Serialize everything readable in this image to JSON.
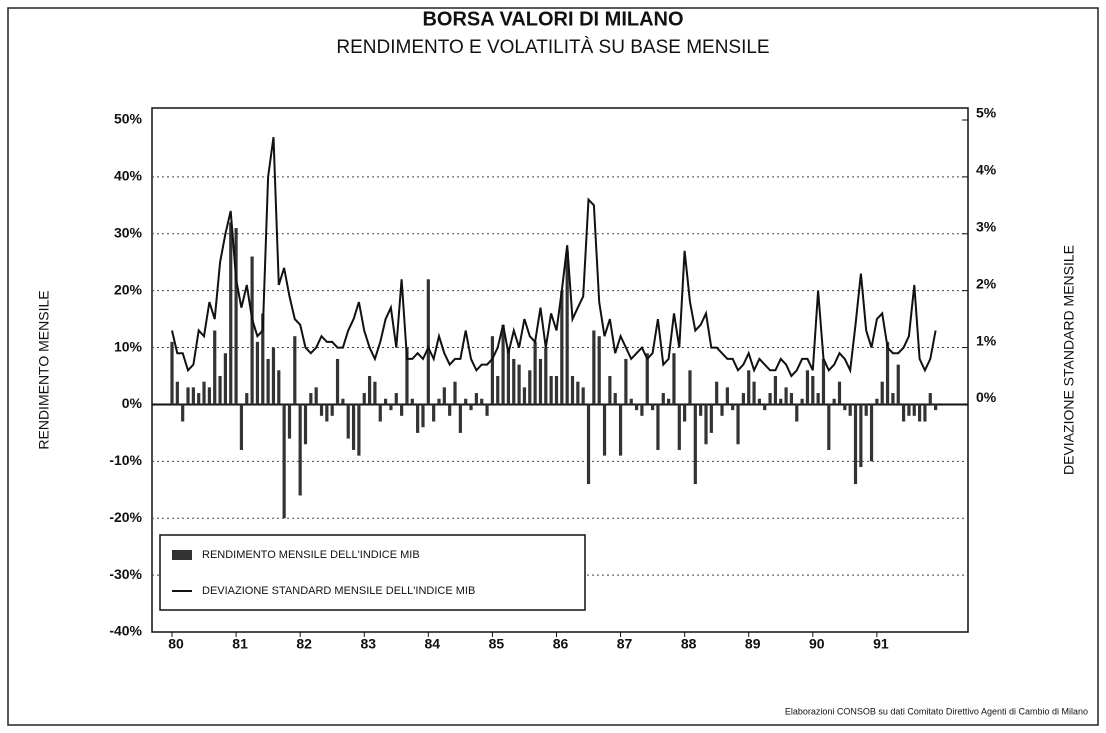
{
  "chart_data": {
    "type": "bar_line",
    "title": "BORSA VALORI DI MILANO",
    "subtitle": "RENDIMENTO E VOLATILITÀ SU BASE MENSILE",
    "ylabel": "RENDIMENTO MENSILE",
    "y2label": "DEVIAZIONE STANDARD MENSILE",
    "source": "Elaborazioni CONSOB su dati Comitato Direttivo Agenti di Cambio di Milano",
    "legend": "lower left",
    "grid": true,
    "ylim": [
      -40,
      50
    ],
    "yticks": [
      {
        "value": -40,
        "label": "-40%"
      },
      {
        "value": -30,
        "label": "-30%"
      },
      {
        "value": -20,
        "label": "-20%"
      },
      {
        "value": -10,
        "label": "-10%"
      },
      {
        "value": 0,
        "label": "0%"
      },
      {
        "value": 10,
        "label": "10%"
      },
      {
        "value": 20,
        "label": "20%"
      },
      {
        "value": 30,
        "label": "30%"
      },
      {
        "value": 40,
        "label": "40%"
      },
      {
        "value": 50,
        "label": "50%"
      }
    ],
    "y2lim": [
      -4,
      5
    ],
    "y2ticks": [
      {
        "value": 0,
        "label": "0%"
      },
      {
        "value": 1,
        "label": "1%"
      },
      {
        "value": 2,
        "label": "2%"
      },
      {
        "value": 3,
        "label": "3%"
      },
      {
        "value": 4,
        "label": "4%"
      },
      {
        "value": 5,
        "label": "5%"
      }
    ],
    "categories": [
      "80",
      null,
      null,
      null,
      null,
      null,
      null,
      null,
      null,
      null,
      null,
      null,
      "81",
      null,
      null,
      null,
      null,
      null,
      null,
      null,
      null,
      null,
      null,
      null,
      "82",
      null,
      null,
      null,
      null,
      null,
      null,
      null,
      null,
      null,
      null,
      null,
      "83",
      null,
      null,
      null,
      null,
      null,
      null,
      null,
      null,
      null,
      null,
      null,
      "84",
      null,
      null,
      null,
      null,
      null,
      null,
      null,
      null,
      null,
      null,
      null,
      "85",
      null,
      null,
      null,
      null,
      null,
      null,
      null,
      null,
      null,
      null,
      null,
      "86",
      null,
      null,
      null,
      null,
      null,
      null,
      null,
      null,
      null,
      null,
      null,
      "87",
      null,
      null,
      null,
      null,
      null,
      null,
      null,
      null,
      null,
      null,
      null,
      "88",
      null,
      null,
      null,
      null,
      null,
      null,
      null,
      null,
      null,
      null,
      null,
      "89",
      null,
      null,
      null,
      null,
      null,
      null,
      null,
      null,
      null,
      null,
      null,
      "90",
      null,
      null,
      null,
      null,
      null,
      null,
      null,
      null,
      null,
      null,
      null,
      "91",
      null,
      null,
      null,
      null,
      null,
      null,
      null,
      null,
      null,
      null,
      null
    ],
    "series": [
      {
        "name": "RENDIMENTO MENSILE DELL'INDICE MIB",
        "kind": "bar",
        "color": "#333333",
        "values": [
          11,
          4,
          -3,
          3,
          3,
          2,
          4,
          3,
          13,
          5,
          9,
          32,
          31,
          -8,
          2,
          26,
          11,
          16,
          8,
          10,
          6,
          -20,
          -6,
          12,
          -16,
          -7,
          2,
          3,
          -2,
          -3,
          -2,
          8,
          1,
          -6,
          -8,
          -9,
          2,
          5,
          4,
          -3,
          1,
          -1,
          2,
          -2,
          10,
          1,
          -5,
          -4,
          22,
          -3,
          1,
          3,
          -2,
          4,
          -5,
          1,
          -1,
          2,
          1,
          -2,
          12,
          5,
          14,
          10,
          8,
          7,
          3,
          6,
          11,
          8,
          10,
          5,
          5,
          20,
          27,
          5,
          4,
          3,
          -14,
          13,
          12,
          -9,
          5,
          2,
          -9,
          8,
          1,
          -1,
          -2,
          9,
          -1,
          -8,
          2,
          1,
          9,
          -8,
          -3,
          6,
          -14,
          -2,
          -7,
          -5,
          4,
          -2,
          3,
          -1,
          -7,
          2,
          6,
          4,
          1,
          -1,
          2,
          5,
          1,
          3,
          2,
          -3,
          1,
          6,
          5,
          2,
          8,
          -8,
          1,
          4,
          -1,
          -2,
          -14,
          -11,
          -2,
          -10,
          1,
          4,
          11,
          2,
          7,
          -3,
          -2,
          -2,
          -3,
          -3,
          2,
          -1
        ]
      },
      {
        "name": "DEVIAZIONE STANDARD MENSILE DELL'INDICE MIB",
        "kind": "line",
        "axis": "y2",
        "color": "#111111",
        "values": [
          1.3,
          0.9,
          0.9,
          0.6,
          0.7,
          1.3,
          1.2,
          1.8,
          1.5,
          2.5,
          3.0,
          3.4,
          2.2,
          1.7,
          2.1,
          1.5,
          1.2,
          1.3,
          4.0,
          4.7,
          2.1,
          2.4,
          1.9,
          1.5,
          1.4,
          1.0,
          0.9,
          1.0,
          1.2,
          1.1,
          1.1,
          1.0,
          1.0,
          1.3,
          1.5,
          1.8,
          1.3,
          1.0,
          0.8,
          1.1,
          1.5,
          1.7,
          1.0,
          2.2,
          0.8,
          0.8,
          0.9,
          0.8,
          1.0,
          0.8,
          1.2,
          0.9,
          0.7,
          0.8,
          0.8,
          1.3,
          0.8,
          0.6,
          0.7,
          0.7,
          0.8,
          1.0,
          1.4,
          0.9,
          1.3,
          1.0,
          1.5,
          1.2,
          1.1,
          1.7,
          1.0,
          1.6,
          1.3,
          2.0,
          2.8,
          1.5,
          1.7,
          1.9,
          3.6,
          3.5,
          1.8,
          1.2,
          1.5,
          0.9,
          1.2,
          1.0,
          0.8,
          0.9,
          1.0,
          0.8,
          0.9,
          1.5,
          0.7,
          0.8,
          1.6,
          1.0,
          2.7,
          1.8,
          1.3,
          1.4,
          1.6,
          1.0,
          1.0,
          0.9,
          0.8,
          0.8,
          0.6,
          0.7,
          0.9,
          0.6,
          0.8,
          0.7,
          0.6,
          0.6,
          0.8,
          0.7,
          0.5,
          0.6,
          0.8,
          0.8,
          0.6,
          2.0,
          0.8,
          0.6,
          0.7,
          0.9,
          0.8,
          0.6,
          1.4,
          2.3,
          1.3,
          1.0,
          1.5,
          1.6,
          1.0,
          0.9,
          0.9,
          1.0,
          1.2,
          2.1,
          0.8,
          0.6,
          0.8,
          1.3
        ]
      }
    ]
  }
}
